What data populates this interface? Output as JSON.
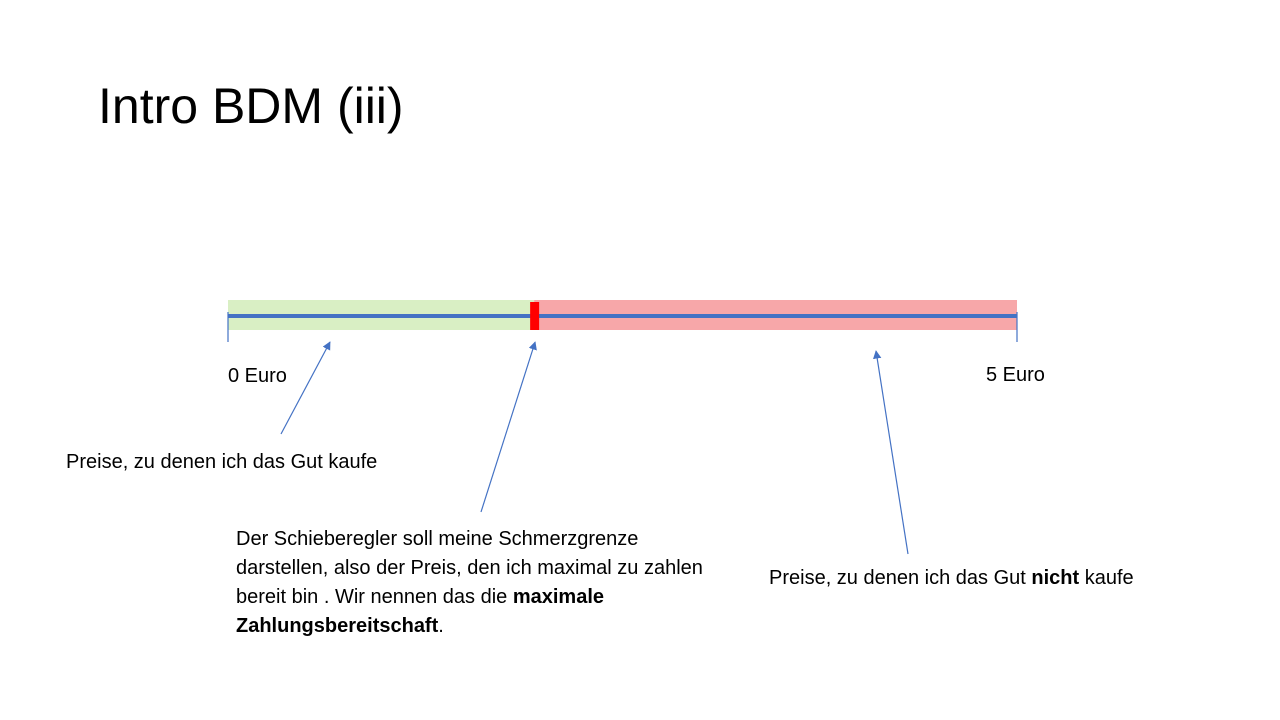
{
  "title": "Intro BDM (iii)",
  "scale": {
    "min_label": "0 Euro",
    "max_label": "5 Euro",
    "min_value": 0,
    "max_value": 5,
    "marker_value": 1.94
  },
  "colors": {
    "buy_zone": "#d9efc4",
    "no_buy_zone": "#f7a7a9",
    "axis_line": "#4472c4",
    "marker": "#ff0000",
    "arrow": "#4472c4"
  },
  "captions": {
    "buy": "Preise, zu denen ich das Gut kaufe",
    "not_buy_before": "Preise, zu denen ich das Gut ",
    "not_buy_bold": "nicht",
    "not_buy_after": " kaufe",
    "slider_text": "Der Schieberegler soll meine Schmerzgrenze darstellen, also der Preis, den ich maximal zu zahlen bereit bin . Wir nennen das die ",
    "slider_bold": "maximale Zahlungsbereitschaft",
    "slider_end": "."
  }
}
